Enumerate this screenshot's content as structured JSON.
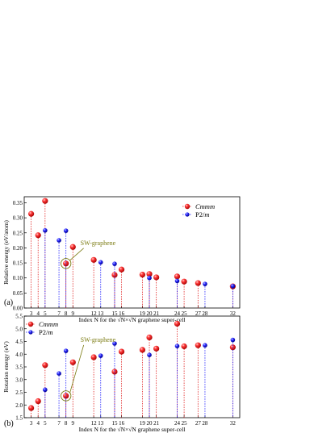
{
  "chart_data": [
    {
      "type": "scatter",
      "panel_label": "(a)",
      "ylabel": "Relative energy (eV/atom)",
      "xlabel": "Index N for the √N×√N graphene super-cell",
      "ylim": [
        0.0,
        0.37
      ],
      "yticks": [
        "0.00",
        "0.05",
        "0.10",
        "0.15",
        "0.20",
        "0.25",
        "0.30",
        "0.35"
      ],
      "x_ticks": [
        "3",
        "4",
        "5",
        "7",
        "8",
        "9",
        "12",
        "13",
        "15",
        "16",
        "19",
        "20",
        "21",
        "24",
        "25",
        "27",
        "28",
        "32"
      ],
      "legend_position": "top-right",
      "annotation": {
        "text": "SW-graphene",
        "x": 8,
        "y": 0.148
      },
      "series": [
        {
          "name": "Cmmm",
          "marker": "red-sphere",
          "x": [
            3,
            4,
            5,
            8,
            9,
            12,
            15,
            16,
            19,
            20,
            21,
            24,
            25,
            27,
            32
          ],
          "values": [
            0.313,
            0.242,
            0.356,
            0.148,
            0.203,
            0.16,
            0.11,
            0.128,
            0.111,
            0.113,
            0.102,
            0.105,
            0.088,
            0.083,
            0.072
          ]
        },
        {
          "name": "P2/m",
          "marker": "blue-dot",
          "x": [
            5,
            7,
            8,
            13,
            15,
            20,
            24,
            28,
            32
          ],
          "values": [
            0.258,
            0.225,
            0.257,
            0.152,
            0.147,
            0.1,
            0.09,
            0.08,
            0.073
          ]
        }
      ]
    },
    {
      "type": "scatter",
      "panel_label": "(b)",
      "ylabel": "Rotation energy (eV)",
      "xlabel": "Index N for the √N×√N graphene super-cell",
      "ylim": [
        1.5,
        5.5
      ],
      "yticks": [
        "1.5",
        "2.0",
        "2.5",
        "3.0",
        "3.5",
        "4.0",
        "4.5",
        "5.0",
        "5.5"
      ],
      "x_ticks": [
        "3",
        "4",
        "5",
        "7",
        "8",
        "9",
        "12",
        "13",
        "15",
        "16",
        "19",
        "20",
        "21",
        "24",
        "25",
        "27",
        "28",
        "32"
      ],
      "legend_position": "top-left",
      "annotation": {
        "text": "SW-graphene",
        "x": 8,
        "y": 2.36
      },
      "series": [
        {
          "name": "Cmmm",
          "marker": "red-sphere",
          "x": [
            3,
            4,
            5,
            8,
            9,
            12,
            15,
            16,
            19,
            20,
            21,
            24,
            25,
            27,
            32
          ],
          "values": [
            1.88,
            2.15,
            3.57,
            2.36,
            3.68,
            3.88,
            3.31,
            4.1,
            4.17,
            4.66,
            4.22,
            5.2,
            4.31,
            4.35,
            4.27
          ]
        },
        {
          "name": "P2/m",
          "marker": "blue-dot",
          "x": [
            5,
            7,
            8,
            13,
            15,
            20,
            24,
            28,
            32
          ],
          "values": [
            2.6,
            3.24,
            4.13,
            3.94,
            4.42,
            3.97,
            4.32,
            4.35,
            4.56
          ]
        }
      ]
    }
  ]
}
